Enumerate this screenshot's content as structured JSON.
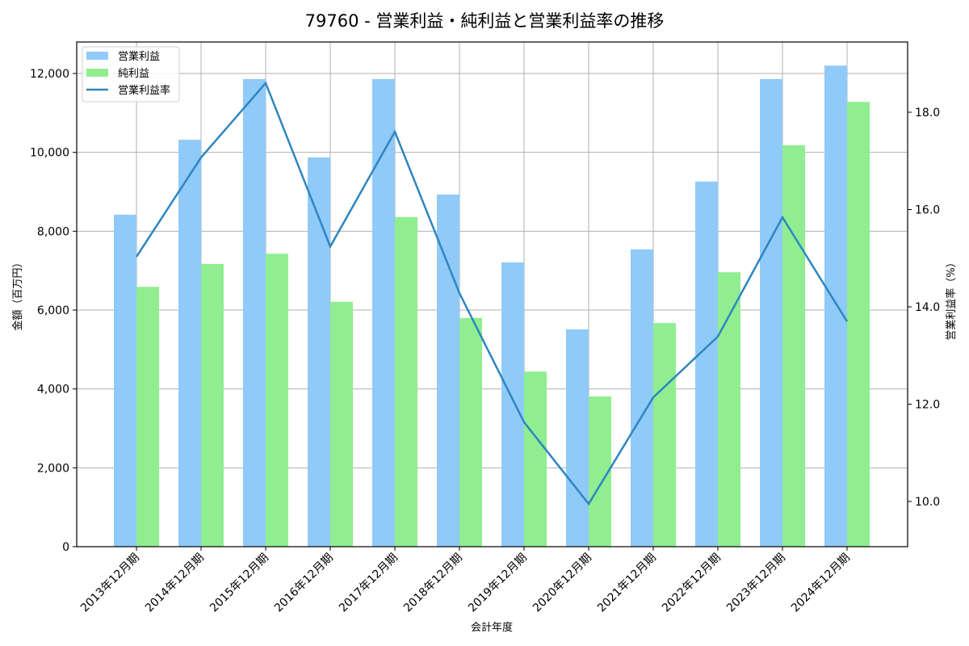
{
  "chart_data": {
    "type": "bar",
    "title": "79760 - 営業利益・純利益と営業利益率の推移",
    "xlabel": "会計年度",
    "ylabel": "金額（百万円）",
    "y2label": "営業利益率（%）",
    "categories": [
      "2013年12月期",
      "2014年12月期",
      "2015年12月期",
      "2016年12月期",
      "2017年12月期",
      "2018年12月期",
      "2019年12月期",
      "2020年12月期",
      "2021年12月期",
      "2022年12月期",
      "2023年12月期",
      "2024年12月期"
    ],
    "series": [
      {
        "name": "営業利益",
        "type": "bar",
        "axis": "left",
        "color": "#90CAF9",
        "values": [
          8420,
          10320,
          11860,
          9870,
          11860,
          8930,
          7210,
          5510,
          7540,
          9260,
          11860,
          12200
        ]
      },
      {
        "name": "純利益",
        "type": "bar",
        "axis": "left",
        "color": "#90EE90",
        "values": [
          6590,
          7170,
          7430,
          6210,
          8360,
          5800,
          4440,
          3810,
          5670,
          6960,
          10180,
          11280
        ]
      },
      {
        "name": "営業利益率",
        "type": "line",
        "axis": "right",
        "color": "#2E86C1",
        "values": [
          15.03,
          17.07,
          18.6,
          15.24,
          17.6,
          14.28,
          11.63,
          9.95,
          12.14,
          13.39,
          15.84,
          13.7
        ]
      }
    ],
    "ylim": [
      0,
      12800
    ],
    "y2lim": [
      9.07,
      19.44
    ],
    "yticks": [
      0,
      2000,
      4000,
      6000,
      8000,
      10000,
      12000
    ],
    "ytick_labels": [
      "0",
      "2,000",
      "4,000",
      "6,000",
      "8,000",
      "10,000",
      "12,000"
    ],
    "y2ticks": [
      10.0,
      12.0,
      14.0,
      16.0,
      18.0
    ],
    "y2tick_labels": [
      "10.0",
      "12.0",
      "14.0",
      "16.0",
      "18.0"
    ],
    "grid": true,
    "legend_position": "upper left"
  }
}
